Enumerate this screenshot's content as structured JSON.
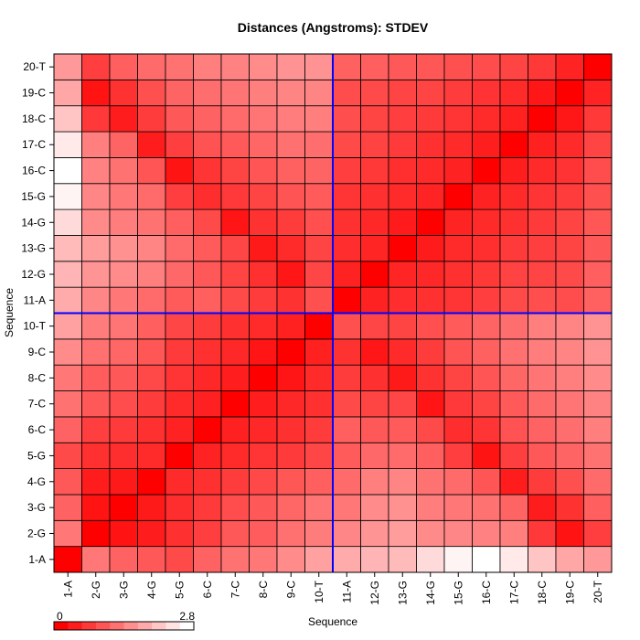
{
  "chart_data": {
    "type": "heatmap",
    "title": "Distances (Angstroms):  STDEV",
    "xlabel": "Sequence",
    "ylabel": "Sequence",
    "labels": [
      "1-A",
      "2-G",
      "3-G",
      "4-G",
      "5-G",
      "6-C",
      "7-C",
      "8-C",
      "9-C",
      "10-T",
      "11-A",
      "12-G",
      "13-G",
      "14-G",
      "15-G",
      "16-C",
      "17-C",
      "18-C",
      "19-C",
      "20-T"
    ],
    "divider_after_index": 10,
    "divider_color": "#0000ff",
    "legend": {
      "min_label": "0",
      "max_label": "2.8",
      "min": 0,
      "max": 2.8
    },
    "color_low": "#ff0000",
    "color_high": "#ffffff",
    "grid": true,
    "values": [
      [
        0.0,
        1.31,
        1.08,
        0.97,
        0.81,
        1.08,
        1.25,
        1.31,
        1.53,
        1.77,
        1.88,
        1.99,
        2.04,
        2.39,
        2.68,
        2.8,
        2.56,
        2.16,
        1.82,
        1.67
      ],
      [
        1.31,
        0.0,
        0.21,
        0.31,
        0.53,
        0.69,
        0.97,
        1.02,
        1.23,
        1.36,
        1.47,
        1.63,
        1.71,
        1.51,
        1.47,
        1.42,
        1.38,
        0.63,
        0.21,
        0.69
      ],
      [
        1.08,
        0.21,
        0.0,
        0.28,
        0.5,
        0.64,
        0.85,
        0.97,
        1.12,
        1.27,
        1.31,
        1.53,
        1.59,
        1.37,
        1.31,
        1.25,
        1.1,
        0.31,
        0.55,
        1.04
      ],
      [
        0.97,
        0.31,
        0.28,
        0.0,
        0.47,
        0.53,
        0.66,
        0.8,
        0.94,
        1.04,
        1.18,
        1.39,
        1.45,
        1.25,
        1.18,
        0.93,
        0.31,
        0.66,
        0.88,
        1.18
      ],
      [
        0.81,
        0.53,
        0.5,
        0.47,
        0.0,
        0.37,
        0.46,
        0.58,
        0.64,
        0.77,
        1.0,
        1.14,
        1.18,
        1.04,
        0.69,
        0.22,
        0.69,
        0.97,
        1.1,
        1.25
      ],
      [
        1.08,
        0.69,
        0.64,
        0.53,
        0.37,
        0.0,
        0.36,
        0.44,
        0.53,
        0.66,
        1.04,
        0.97,
        1.0,
        0.81,
        0.51,
        0.58,
        0.9,
        1.08,
        1.21,
        1.38
      ],
      [
        1.25,
        0.97,
        0.85,
        0.66,
        0.46,
        0.36,
        0.0,
        0.32,
        0.44,
        0.53,
        0.81,
        0.75,
        0.77,
        0.23,
        0.63,
        0.75,
        0.98,
        1.18,
        1.29,
        1.43
      ],
      [
        1.31,
        1.02,
        0.97,
        0.8,
        0.58,
        0.44,
        0.32,
        0.0,
        0.23,
        0.47,
        0.66,
        0.53,
        0.28,
        0.55,
        0.75,
        0.93,
        1.13,
        1.28,
        1.38,
        1.53
      ],
      [
        1.53,
        1.23,
        1.12,
        0.94,
        0.64,
        0.53,
        0.44,
        0.23,
        0.0,
        0.35,
        0.55,
        0.25,
        0.47,
        0.66,
        0.92,
        1.06,
        1.23,
        1.37,
        1.46,
        1.6
      ],
      [
        1.77,
        1.36,
        1.27,
        1.04,
        0.77,
        0.66,
        0.53,
        0.47,
        0.35,
        0.0,
        0.88,
        0.77,
        0.75,
        0.87,
        1.0,
        1.1,
        1.21,
        1.38,
        1.45,
        1.6
      ],
      [
        1.88,
        1.47,
        1.31,
        1.18,
        1.0,
        1.04,
        0.81,
        0.66,
        0.55,
        0.88,
        0.0,
        0.37,
        0.49,
        0.53,
        0.58,
        0.69,
        0.81,
        0.86,
        0.83,
        1.05
      ],
      [
        1.99,
        1.63,
        1.53,
        1.39,
        1.14,
        0.97,
        0.75,
        0.53,
        0.25,
        0.77,
        0.37,
        0.0,
        0.41,
        0.44,
        0.53,
        0.62,
        0.72,
        0.75,
        0.81,
        1.04
      ],
      [
        2.04,
        1.71,
        1.59,
        1.45,
        1.18,
        1.0,
        0.77,
        0.28,
        0.47,
        0.75,
        0.49,
        0.41,
        0.0,
        0.3,
        0.46,
        0.52,
        0.64,
        0.69,
        0.75,
        0.97
      ],
      [
        2.39,
        1.51,
        1.37,
        1.25,
        1.04,
        0.81,
        0.23,
        0.55,
        0.66,
        0.87,
        0.53,
        0.44,
        0.3,
        0.0,
        0.4,
        0.46,
        0.53,
        0.64,
        0.75,
        0.94
      ],
      [
        2.68,
        1.47,
        1.31,
        1.18,
        0.69,
        0.51,
        0.63,
        0.75,
        0.92,
        1.0,
        0.58,
        0.53,
        0.46,
        0.4,
        0.0,
        0.37,
        0.47,
        0.58,
        0.66,
        0.88
      ],
      [
        2.8,
        1.42,
        1.25,
        0.93,
        0.22,
        0.58,
        0.75,
        0.93,
        1.06,
        1.1,
        0.69,
        0.62,
        0.52,
        0.46,
        0.37,
        0.0,
        0.33,
        0.47,
        0.56,
        0.83
      ],
      [
        2.56,
        1.38,
        1.1,
        0.31,
        0.69,
        0.9,
        0.98,
        1.13,
        1.23,
        1.21,
        0.81,
        0.72,
        0.64,
        0.53,
        0.47,
        0.33,
        0.0,
        0.35,
        0.47,
        0.75
      ],
      [
        2.16,
        0.63,
        0.31,
        0.66,
        0.97,
        1.08,
        1.18,
        1.28,
        1.37,
        1.38,
        0.86,
        0.75,
        0.69,
        0.64,
        0.58,
        0.47,
        0.35,
        0.0,
        0.25,
        0.61
      ],
      [
        1.82,
        0.21,
        0.55,
        0.88,
        1.1,
        1.21,
        1.29,
        1.38,
        1.46,
        1.45,
        0.83,
        0.81,
        0.75,
        0.75,
        0.66,
        0.56,
        0.47,
        0.25,
        0.0,
        0.38
      ],
      [
        1.67,
        0.69,
        1.04,
        1.18,
        1.25,
        1.38,
        1.43,
        1.53,
        1.6,
        1.6,
        1.05,
        1.04,
        0.97,
        0.94,
        0.88,
        0.83,
        0.75,
        0.61,
        0.38,
        0.0
      ]
    ]
  }
}
